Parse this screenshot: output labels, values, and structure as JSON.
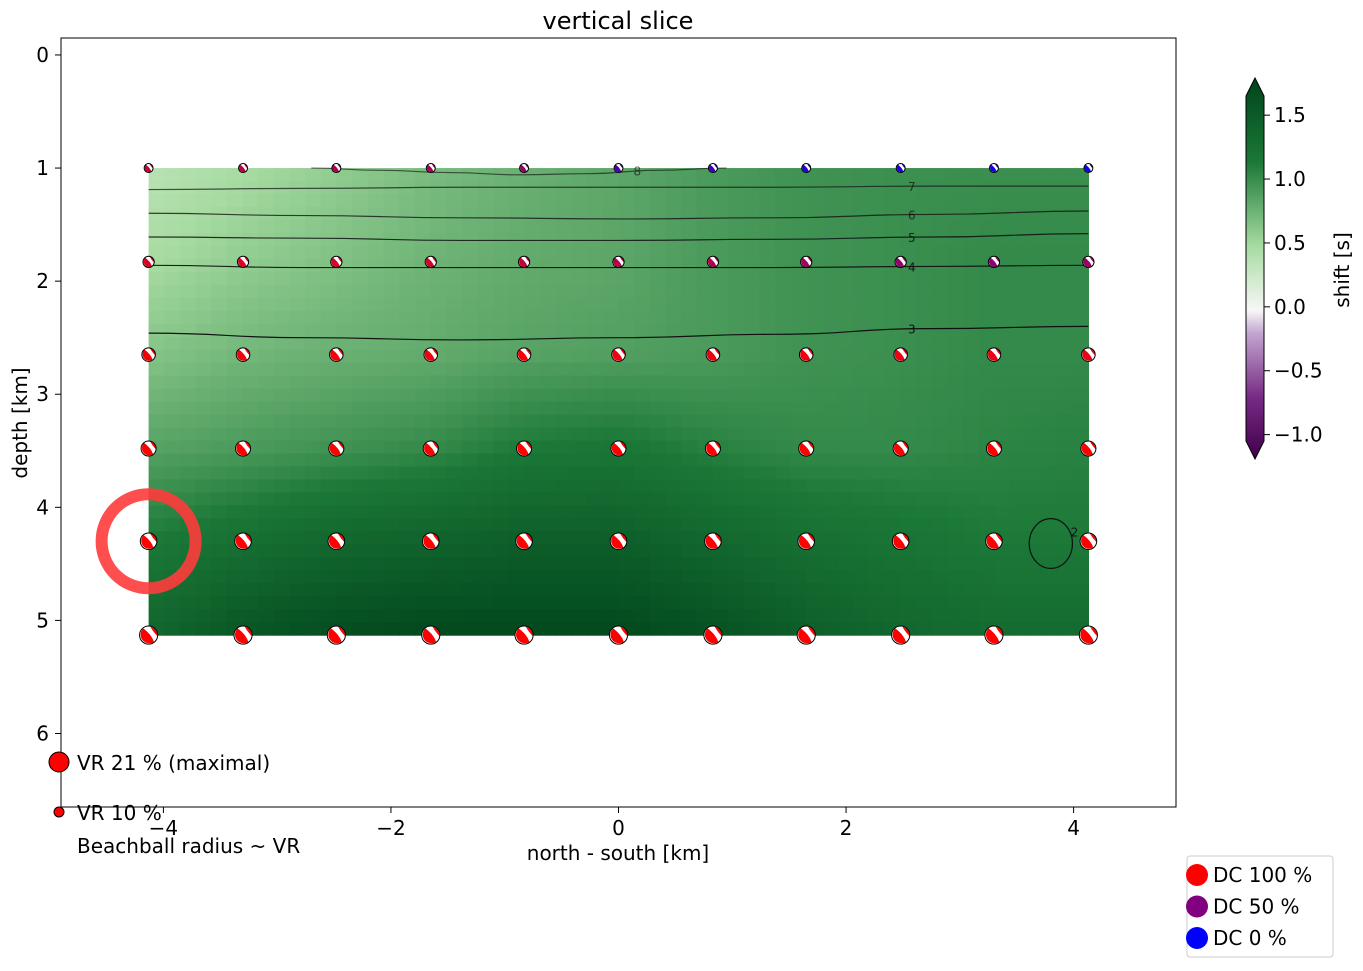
{
  "chart_data": {
    "type": "heatmap",
    "title": "vertical slice",
    "xlabel": "north - south [km]",
    "ylabel": "depth [km]",
    "xlim": [
      -4.9,
      4.9
    ],
    "ylim": [
      6.65,
      -0.15
    ],
    "y_inverted": true,
    "grid": false,
    "x_ticks": [
      -4,
      -2,
      0,
      2,
      4
    ],
    "x_tick_labels": [
      "−4",
      "−2",
      "0",
      "2",
      "4"
    ],
    "y_ticks": [
      0,
      1,
      2,
      3,
      4,
      5,
      6
    ],
    "y_tick_labels": [
      "0",
      "1",
      "2",
      "3",
      "4",
      "5",
      "6"
    ],
    "grid_x": [
      -4.13,
      -3.3,
      -2.48,
      -1.65,
      -0.83,
      0,
      0.83,
      1.65,
      2.48,
      3.3,
      4.13
    ],
    "grid_depth": [
      1.0,
      1.83,
      2.65,
      3.48,
      4.3,
      5.13
    ],
    "vr_by_depth": [
      7,
      10,
      13,
      15,
      17,
      19
    ],
    "dc_by_depth": [
      [
        78,
        74,
        70,
        66,
        58,
        30,
        22,
        12,
        10,
        8,
        6
      ],
      [
        88,
        88,
        86,
        85,
        78,
        72,
        70,
        62,
        58,
        55,
        62
      ],
      [
        97,
        97,
        97,
        96,
        96,
        95,
        95,
        94,
        93,
        92,
        92
      ],
      [
        100,
        100,
        100,
        100,
        100,
        100,
        100,
        100,
        100,
        100,
        100
      ],
      [
        100,
        100,
        100,
        100,
        100,
        100,
        100,
        100,
        100,
        100,
        100
      ],
      [
        100,
        100,
        100,
        100,
        100,
        100,
        100,
        100,
        100,
        100,
        100
      ]
    ],
    "shift_field": [
      [
        0.35,
        0.45,
        0.55,
        0.65,
        0.72,
        0.78,
        0.85,
        0.9,
        0.92,
        0.92,
        0.92
      ],
      [
        0.45,
        0.55,
        0.62,
        0.7,
        0.75,
        0.78,
        0.85,
        0.9,
        0.92,
        0.95,
        0.95
      ],
      [
        0.6,
        0.68,
        0.72,
        0.75,
        0.8,
        0.82,
        0.85,
        0.9,
        0.92,
        0.95,
        0.95
      ],
      [
        0.8,
        0.85,
        0.9,
        0.95,
        1.05,
        1.08,
        1.0,
        0.95,
        0.95,
        0.98,
        1.0
      ],
      [
        1.05,
        1.15,
        1.25,
        1.3,
        1.35,
        1.35,
        1.25,
        1.15,
        1.1,
        1.05,
        1.05
      ],
      [
        1.25,
        1.45,
        1.55,
        1.6,
        1.6,
        1.6,
        1.5,
        1.35,
        1.25,
        1.2,
        1.2
      ]
    ],
    "contours": [
      {
        "label": "8",
        "depth": [
          1.0,
          1.02,
          1.04,
          1.06,
          1.05,
          1.02,
          1.0
        ],
        "x_start": -2.7,
        "x_end": 0.95
      },
      {
        "label": "7",
        "depth": [
          1.19,
          1.18,
          1.17,
          1.17,
          1.17,
          1.16,
          1.16
        ]
      },
      {
        "label": "6",
        "depth": [
          1.4,
          1.42,
          1.44,
          1.45,
          1.44,
          1.41,
          1.38
        ]
      },
      {
        "label": "5",
        "depth": [
          1.61,
          1.62,
          1.64,
          1.64,
          1.63,
          1.61,
          1.58
        ]
      },
      {
        "label": "4",
        "depth": [
          1.86,
          1.88,
          1.88,
          1.88,
          1.88,
          1.87,
          1.86
        ]
      },
      {
        "label": "3",
        "depth": [
          2.46,
          2.5,
          2.52,
          2.5,
          2.47,
          2.42,
          2.4
        ]
      },
      {
        "label": "2",
        "closed": true,
        "center_x": 3.8,
        "center_depth": 4.32,
        "rx": 0.19,
        "rdepth": 0.22
      }
    ],
    "highlight": {
      "x": -4.13,
      "depth": 4.3,
      "color": "#ff3b3b"
    },
    "colorbar": {
      "label": "shift [s]",
      "min": -1.05,
      "max": 1.65,
      "ticks": [
        1.5,
        1.0,
        0.5,
        0.0,
        -0.5,
        -1.0
      ],
      "tick_labels": [
        "1.5",
        "1.0",
        "0.5",
        "0.0",
        "−0.5",
        "−1.0"
      ],
      "colormap": [
        "#40004b",
        "#762a83",
        "#c2a5cf",
        "#f7f7f7",
        "#a6dba0",
        "#1b7837",
        "#00441b"
      ]
    },
    "vr_legend": {
      "max_label": "VR 21 % (maximal)",
      "half_label": "VR 10 %",
      "note": "Beachball radius ~ VR"
    },
    "dc_legend": [
      {
        "label": "DC 100 %",
        "color": "#ff0000"
      },
      {
        "label": "DC 50 %",
        "color": "#800080"
      },
      {
        "label": "DC 0 %",
        "color": "#0000ff"
      }
    ]
  }
}
